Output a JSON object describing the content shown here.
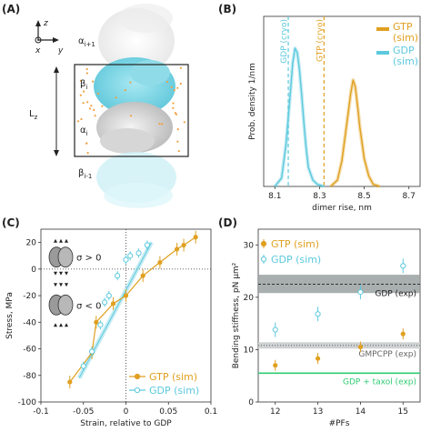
{
  "colors": {
    "gtp": "#e0a020",
    "gdp": "#5cc9dd",
    "gray_band": "#9aa0a0",
    "green": "#2ecc71",
    "protein_white": "#e6e6e6",
    "protein_cyan": "#7fd8e6",
    "water_orange": "#f0a040"
  },
  "panelA": {
    "letter": "(A)",
    "axis_z": "z",
    "axis_x": "x",
    "axis_y": "y",
    "label_alpha_top": "α i+1",
    "label_beta": "β i",
    "label_alpha": "α i",
    "label_beta_bottom": "β i-1",
    "label_lz": "L z"
  },
  "chart_data": [
    {
      "panel": "(B)",
      "type": "line",
      "xlabel": "dimer rise, nm",
      "ylabel": "Prob. density 1/nm",
      "xlim": [
        8.05,
        8.75
      ],
      "ylim": [
        0,
        0.8
      ],
      "xticks": [
        "8.1",
        "8.3",
        "8.5",
        "8.7"
      ],
      "legend": [
        "GTP (sim)",
        "GDP (sim)"
      ],
      "legend_position": "top-right",
      "annotations": [
        {
          "text": "GDP (cryo)",
          "x": 8.16
        },
        {
          "text": "GTP (cryo)",
          "x": 8.32
        }
      ],
      "series": [
        {
          "name": "GDP (sim)",
          "x": [
            8.1,
            8.13,
            8.15,
            8.17,
            8.18,
            8.19,
            8.2,
            8.21,
            8.22,
            8.23,
            8.24,
            8.25,
            8.27,
            8.29,
            8.32
          ],
          "values": [
            0.0,
            0.04,
            0.2,
            0.45,
            0.58,
            0.65,
            0.63,
            0.55,
            0.43,
            0.3,
            0.18,
            0.09,
            0.03,
            0.01,
            0.0
          ]
        },
        {
          "name": "GTP (sim)",
          "x": [
            8.35,
            8.38,
            8.4,
            8.42,
            8.44,
            8.45,
            8.46,
            8.47,
            8.48,
            8.5,
            8.52,
            8.54,
            8.57
          ],
          "values": [
            0.0,
            0.03,
            0.12,
            0.28,
            0.44,
            0.5,
            0.47,
            0.38,
            0.28,
            0.13,
            0.05,
            0.01,
            0.0
          ]
        }
      ]
    },
    {
      "panel": "(C)",
      "type": "scatter",
      "xlabel": "Strain, relative to GDP",
      "ylabel": "Stress, MPa",
      "xlim": [
        -0.1,
        0.1
      ],
      "ylim": [
        -100,
        30
      ],
      "xticks": [
        "-0.1",
        "-0.05",
        "0",
        "0.05",
        "0.1"
      ],
      "yticks": [
        "20",
        "0",
        "-20",
        "-40",
        "-60",
        "-80",
        "-100"
      ],
      "inset_labels": [
        "σ > 0",
        "σ < 0"
      ],
      "legend": [
        "GTP (sim)",
        "GDP (sim)"
      ],
      "legend_position": "bottom-right",
      "series": [
        {
          "name": "GTP (sim)",
          "x": [
            -0.066,
            -0.04,
            -0.035,
            -0.015,
            0.0,
            0.02,
            0.04,
            0.06,
            0.068,
            0.082
          ],
          "values": [
            -85,
            -63,
            -40,
            -26,
            -20,
            -5,
            5,
            15,
            18,
            24
          ]
        },
        {
          "name": "GDP (sim)",
          "x": [
            -0.05,
            -0.04,
            -0.03,
            -0.025,
            -0.02,
            -0.01,
            0.0,
            0.005,
            0.015,
            0.025
          ],
          "values": [
            -73,
            -62,
            -42,
            -25,
            -20,
            -5,
            7,
            10,
            12,
            18
          ]
        }
      ]
    },
    {
      "panel": "(D)",
      "type": "scatter",
      "xlabel": "#PFs",
      "ylabel": "Bending stiffness, pN μm²",
      "xlim": [
        11.6,
        15.4
      ],
      "ylim": [
        0,
        33
      ],
      "xticks": [
        "12",
        "13",
        "14",
        "15"
      ],
      "yticks": [
        "30",
        "20",
        "10",
        "0"
      ],
      "legend": [
        "GTP (sim)",
        "GDP (sim)"
      ],
      "legend_position": "top-left",
      "reference_lines": [
        {
          "text": "GDP (exp)",
          "value": 22.5
        },
        {
          "text": "GMPCPP (exp)",
          "value": 10.8
        },
        {
          "text": "GDP + taxol (exp)",
          "value": 5.5
        }
      ],
      "series": [
        {
          "name": "GTP (sim)",
          "x": [
            12,
            13,
            14,
            15
          ],
          "values": [
            7.0,
            8.3,
            10.5,
            13.0
          ]
        },
        {
          "name": "GDP (sim)",
          "x": [
            12,
            13,
            14,
            15
          ],
          "values": [
            13.8,
            16.8,
            21.0,
            26.0
          ]
        }
      ]
    }
  ]
}
